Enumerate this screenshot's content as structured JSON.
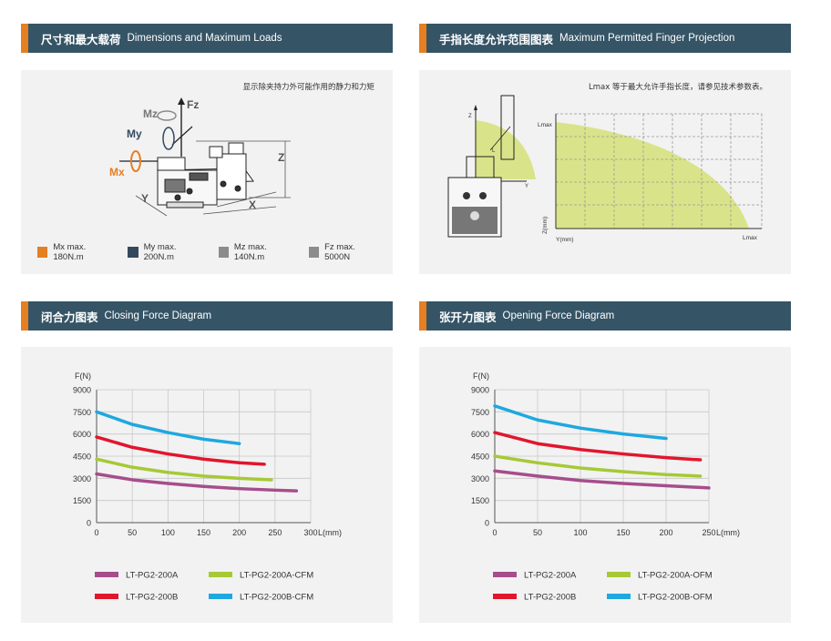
{
  "sections": {
    "dims": {
      "title_zh": "尺寸和最大载荷",
      "title_en": "Dimensions and Maximum Loads",
      "note": "显示除夹持力外可能作用的静力和力矩",
      "labels": {
        "fz": "Fz",
        "mz": "Mz",
        "my": "My",
        "mx": "Mx",
        "z": "Z",
        "y": "Y",
        "x": "X"
      },
      "legend": [
        {
          "label": "Mx max. 180N.m",
          "color": "#e67e22"
        },
        {
          "label": "My max. 200N.m",
          "color": "#34495e"
        },
        {
          "label": "Mz max. 140N.m",
          "color": "#8c8c8c"
        },
        {
          "label": "Fz max. 5000N",
          "color": "#8c8c8c"
        }
      ]
    },
    "finger": {
      "title_zh": "手指长度允许范围图表",
      "title_en": "Maximum Permitted Finger Projection",
      "note": "Lmax 等于最大允许手指长度，请参见技术参数表。",
      "labels": {
        "l": "L",
        "z": "Z",
        "y": "Y",
        "ymm": "Y(mm)",
        "zmm": "Z(mm)",
        "lmax_top": "Lmax",
        "lmax_right": "Lmax"
      }
    },
    "closing": {
      "title_zh": "闭合力图表",
      "title_en": "Closing Force Diagram"
    },
    "opening": {
      "title_zh": "张开力图表",
      "title_en": "Opening Force Diagram"
    }
  },
  "chart_data": [
    {
      "type": "line",
      "title": "Closing Force Diagram",
      "ylabel": "F(N)",
      "xlabel": "L(mm)",
      "ylim": [
        0,
        9000
      ],
      "xlim": [
        0,
        300
      ],
      "yticks": [
        0,
        1500,
        3000,
        4500,
        6000,
        7500,
        9000
      ],
      "xticks": [
        0,
        50,
        100,
        150,
        200,
        250,
        300
      ],
      "grid": true,
      "series": [
        {
          "name": "LT-PG2-200A",
          "color": "#a64d8c",
          "x": [
            0,
            50,
            100,
            150,
            200,
            250,
            280
          ],
          "y": [
            3300,
            2900,
            2650,
            2450,
            2300,
            2200,
            2150
          ]
        },
        {
          "name": "LT-PG2-200A-CFM",
          "color": "#a6c936",
          "x": [
            0,
            50,
            100,
            150,
            200,
            245
          ],
          "y": [
            4300,
            3750,
            3400,
            3150,
            3000,
            2900
          ]
        },
        {
          "name": "LT-PG2-200B",
          "color": "#e1162d",
          "x": [
            0,
            50,
            100,
            150,
            200,
            235
          ],
          "y": [
            5800,
            5100,
            4650,
            4300,
            4050,
            3950
          ]
        },
        {
          "name": "LT-PG2-200B-CFM",
          "color": "#1ea8e0",
          "x": [
            0,
            50,
            100,
            150,
            200
          ],
          "y": [
            7500,
            6650,
            6100,
            5650,
            5350
          ]
        }
      ]
    },
    {
      "type": "line",
      "title": "Opening Force Diagram",
      "ylabel": "F(N)",
      "xlabel": "L(mm)",
      "ylim": [
        0,
        9000
      ],
      "xlim": [
        0,
        250
      ],
      "yticks": [
        0,
        1500,
        3000,
        4500,
        6000,
        7500,
        9000
      ],
      "xticks": [
        0,
        50,
        100,
        150,
        200,
        250
      ],
      "grid": true,
      "series": [
        {
          "name": "LT-PG2-200A",
          "color": "#a64d8c",
          "x": [
            0,
            50,
            100,
            150,
            200,
            250
          ],
          "y": [
            3500,
            3150,
            2850,
            2650,
            2500,
            2350
          ]
        },
        {
          "name": "LT-PG2-200A-OFM",
          "color": "#a6c936",
          "x": [
            0,
            50,
            100,
            150,
            200,
            240
          ],
          "y": [
            4500,
            4050,
            3700,
            3450,
            3250,
            3150
          ]
        },
        {
          "name": "LT-PG2-200B",
          "color": "#e1162d",
          "x": [
            0,
            50,
            100,
            150,
            200,
            240
          ],
          "y": [
            6100,
            5350,
            4950,
            4650,
            4400,
            4250
          ]
        },
        {
          "name": "LT-PG2-200B-OFM",
          "color": "#1ea8e0",
          "x": [
            0,
            50,
            100,
            150,
            200
          ],
          "y": [
            7900,
            6950,
            6400,
            6000,
            5700
          ]
        }
      ]
    }
  ]
}
